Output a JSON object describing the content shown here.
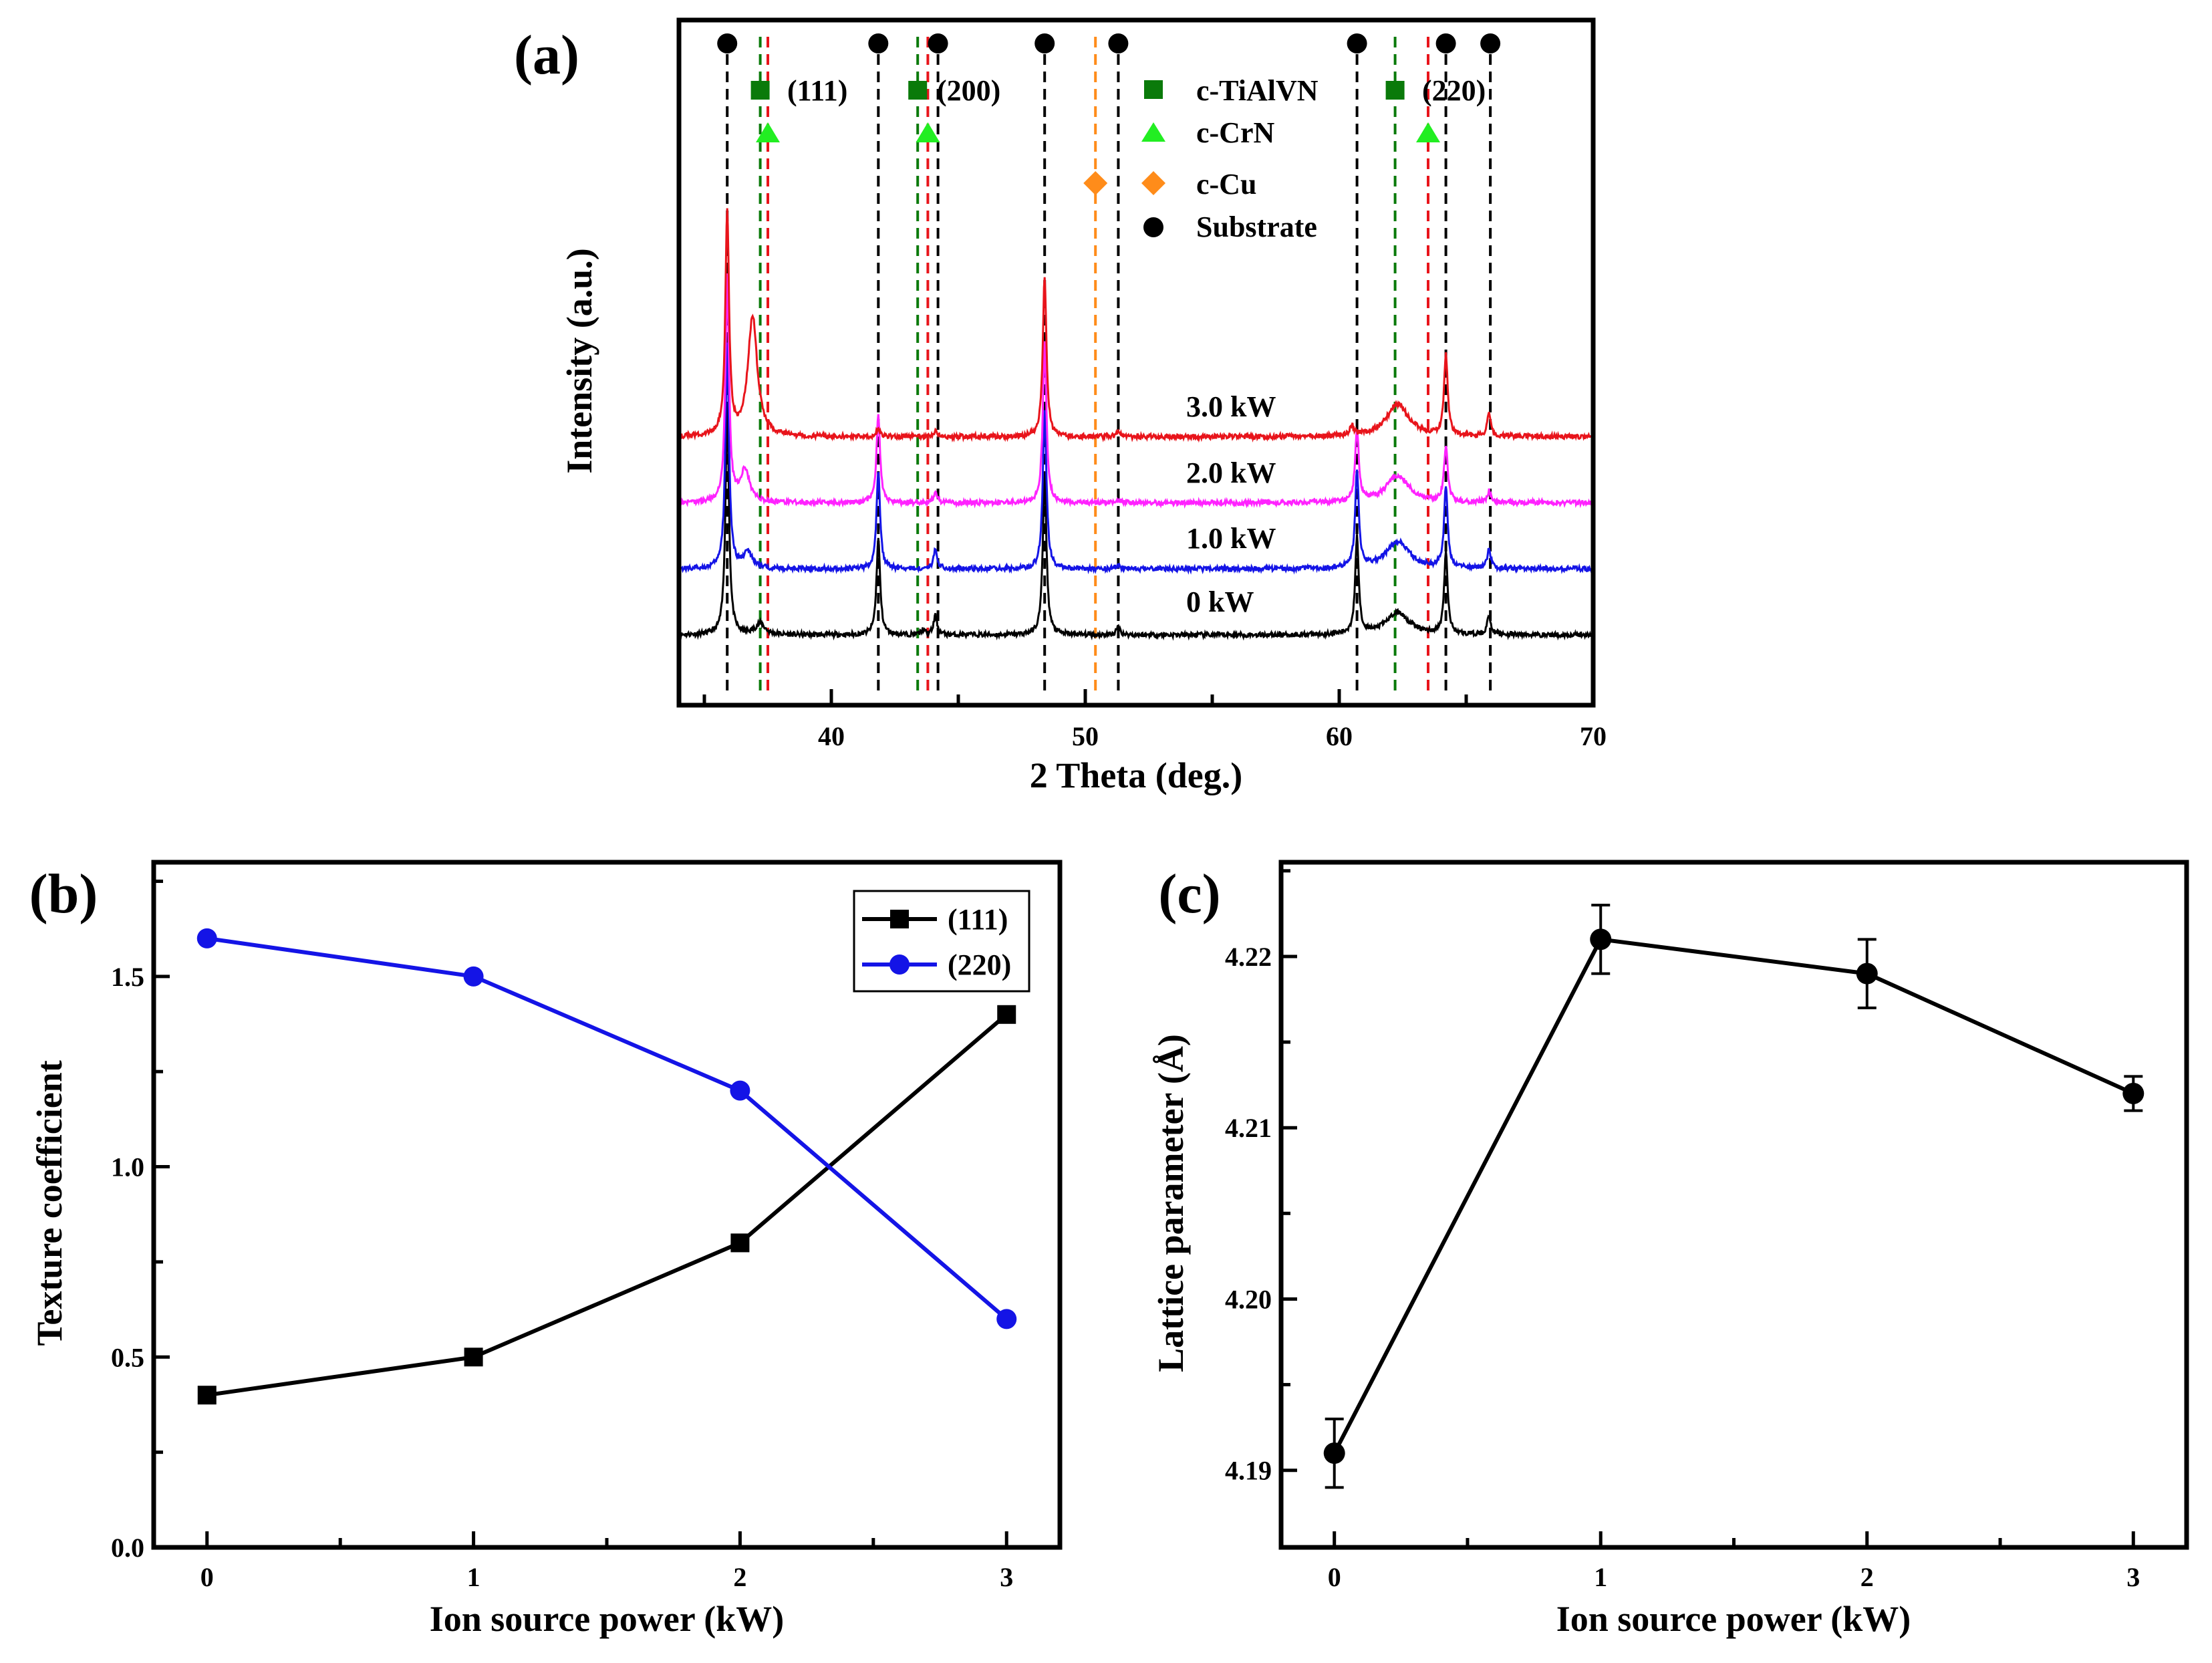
{
  "colors": {
    "black": "#000000",
    "red": "#e8141b",
    "magenta": "#ff22ff",
    "blue": "#1414e6",
    "green": "#0a7a0a",
    "lime": "#22ee22",
    "orange": "#ff8c1a"
  },
  "chart_data": [
    {
      "panel": "(a)",
      "type": "line",
      "title": "",
      "xlabel": "2 Theta (deg.)",
      "ylabel": "Intensity (a.u.)",
      "xlim": [
        34,
        70
      ],
      "xticks": [
        "40",
        "50",
        "60",
        "70"
      ],
      "series": [
        {
          "name": "0 kW",
          "label": "0 kW",
          "color": "#000000",
          "baseline": 0,
          "peaks": [
            [
              35.9,
              1.4
            ],
            [
              37.2,
              0.07
            ],
            [
              41.85,
              0.6
            ],
            [
              43.6,
              0.03
            ],
            [
              44.1,
              0.12
            ],
            [
              48.4,
              1.0
            ],
            [
              51.3,
              0.05
            ],
            [
              60.7,
              0.6
            ],
            [
              62.3,
              0.14
            ],
            [
              64.2,
              0.5
            ],
            [
              65.9,
              0.12
            ]
          ]
        },
        {
          "name": "1.0 kW",
          "label": "1.0 kW",
          "color": "#1414e6",
          "baseline": 0.13,
          "peaks": [
            [
              35.9,
              1.4
            ],
            [
              36.7,
              0.1
            ],
            [
              41.85,
              0.6
            ],
            [
              44.1,
              0.13
            ],
            [
              48.4,
              1.0
            ],
            [
              51.3,
              0.03
            ],
            [
              60.7,
              0.6
            ],
            [
              62.3,
              0.17
            ],
            [
              64.2,
              0.5
            ],
            [
              65.9,
              0.12
            ]
          ]
        },
        {
          "name": "2.0 kW",
          "label": "2.0 kW",
          "color": "#ff22ff",
          "baseline": 0.26,
          "peaks": [
            [
              35.9,
              1.4
            ],
            [
              36.6,
              0.2
            ],
            [
              41.85,
              0.55
            ],
            [
              44.1,
              0.07
            ],
            [
              48.4,
              1.0
            ],
            [
              51.3,
              0.02
            ],
            [
              60.7,
              0.45
            ],
            [
              62.3,
              0.17
            ],
            [
              64.2,
              0.35
            ],
            [
              65.9,
              0.07
            ]
          ]
        },
        {
          "name": "3.0 kW",
          "label": "3.0 kW",
          "color": "#e8141b",
          "baseline": 0.39,
          "peaks": [
            [
              35.9,
              1.4
            ],
            [
              36.9,
              0.75
            ],
            [
              41.85,
              0.05
            ],
            [
              44.1,
              0.04
            ],
            [
              48.4,
              1.0
            ],
            [
              51.3,
              0.03
            ],
            [
              60.5,
              0.06
            ],
            [
              62.3,
              0.2
            ],
            [
              64.2,
              0.5
            ],
            [
              65.9,
              0.15
            ]
          ]
        }
      ],
      "reference_lines": [
        {
          "x": 35.9,
          "color": "#000000"
        },
        {
          "x": 41.85,
          "color": "#000000"
        },
        {
          "x": 44.2,
          "color": "#000000"
        },
        {
          "x": 48.4,
          "color": "#000000"
        },
        {
          "x": 51.3,
          "color": "#000000"
        },
        {
          "x": 60.7,
          "color": "#000000"
        },
        {
          "x": 64.2,
          "color": "#000000"
        },
        {
          "x": 65.95,
          "color": "#000000"
        },
        {
          "x": 37.2,
          "color": "#0a7a0a"
        },
        {
          "x": 43.4,
          "color": "#0a7a0a"
        },
        {
          "x": 62.2,
          "color": "#0a7a0a"
        },
        {
          "x": 37.5,
          "color": "#e8141b"
        },
        {
          "x": 43.8,
          "color": "#e8141b"
        },
        {
          "x": 63.5,
          "color": "#e8141b"
        },
        {
          "x": 50.4,
          "color": "#ff8c1a"
        }
      ],
      "markers": [
        {
          "type": "circle",
          "xs": [
            35.9,
            41.85,
            44.2,
            48.4,
            51.3,
            60.7,
            64.2,
            65.95
          ]
        },
        {
          "type": "square",
          "xs": [
            37.2,
            43.4,
            62.2
          ]
        },
        {
          "type": "triangle",
          "xs": [
            37.5,
            43.8,
            63.5
          ]
        },
        {
          "type": "diamond",
          "xs": [
            50.4
          ]
        }
      ],
      "peak_labels": [
        "(111)",
        "(200)",
        "(220)"
      ],
      "legend": [
        "c-TiAlVN",
        "c-CrN",
        "c-Cu",
        "Substrate"
      ],
      "legend_position": "top-right"
    },
    {
      "panel": "(b)",
      "type": "line",
      "title": "",
      "xlabel": "Ion source power (kW)",
      "ylabel": "Texture coefficient",
      "xlim": [
        -0.2,
        3.2
      ],
      "ylim": [
        0,
        1.8
      ],
      "xticks": [
        "0",
        "1",
        "2",
        "3"
      ],
      "yticks": [
        "0.0",
        "0.5",
        "1.0",
        "1.5"
      ],
      "x": [
        0,
        1,
        2,
        3
      ],
      "series": [
        {
          "name": "(111)",
          "values": [
            0.4,
            0.5,
            0.8,
            1.4
          ],
          "color": "#000000",
          "marker": "square"
        },
        {
          "name": "(220)",
          "values": [
            1.6,
            1.5,
            1.2,
            0.6
          ],
          "color": "#1414e6",
          "marker": "circle"
        }
      ],
      "legend_position": "top-right"
    },
    {
      "panel": "(c)",
      "type": "line",
      "title": "",
      "xlabel": "Ion source power (kW)",
      "ylabel": "Lattice parameter (Å)",
      "xlim": [
        -0.2,
        3.2
      ],
      "ylim": [
        4.1855,
        4.2255
      ],
      "xticks": [
        "0",
        "1",
        "2",
        "3"
      ],
      "yticks": [
        "4.19",
        "4.20",
        "4.21",
        "4.22"
      ],
      "x": [
        0,
        1,
        2,
        3
      ],
      "series": [
        {
          "name": "Lattice parameter",
          "values": [
            4.191,
            4.221,
            4.219,
            4.212
          ],
          "errors": [
            0.002,
            0.002,
            0.002,
            0.001
          ],
          "color": "#000000",
          "marker": "circle"
        }
      ]
    }
  ]
}
